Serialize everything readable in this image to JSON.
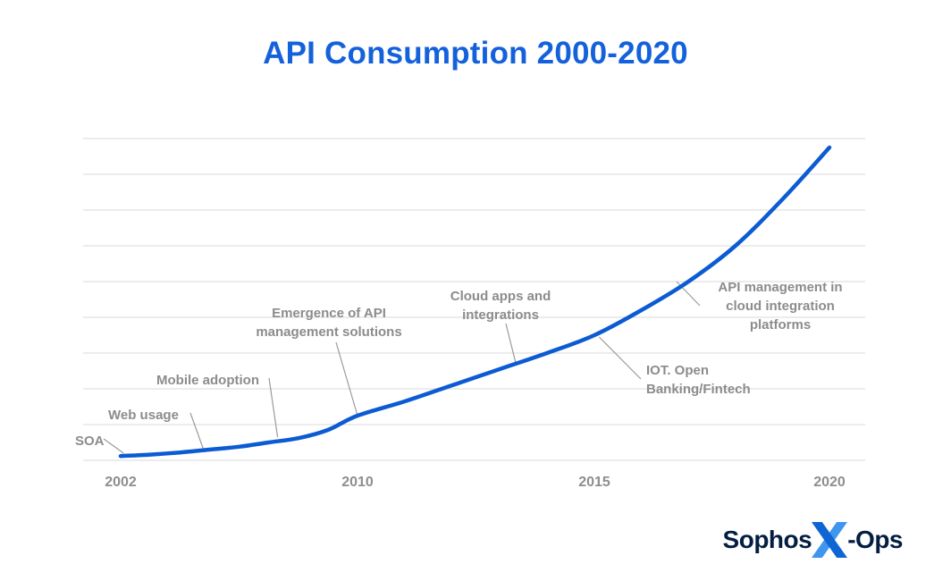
{
  "title": "API Consumption 2000-2020",
  "colors": {
    "title": "#1461dc",
    "line": "#0b5bd3",
    "grid": "#d9d9d9",
    "annotation": "#8c8c8c",
    "leader": "#9b9b9b",
    "logo_text": "#041e42",
    "logo_x_dark": "#0e66d4",
    "logo_x_light": "#3f96ee"
  },
  "logo": {
    "prefix": "Sophos",
    "suffix": "-Ops",
    "icon": "x-ops-x-icon"
  },
  "chart_data": {
    "type": "line",
    "title": "API Consumption 2000-2020",
    "xlabel": "",
    "ylabel": "",
    "legend": "none",
    "grid": "horizontal",
    "ylim": [
      0,
      9
    ],
    "gridline_step": 1,
    "x_tick_labels": [
      "2002",
      "2010",
      "2015",
      "2020"
    ],
    "x_tick_years": [
      2002,
      2010,
      2015,
      2020
    ],
    "x": [
      2002,
      2003,
      2004,
      2005,
      2006,
      2007,
      2008,
      2009,
      2010,
      2011,
      2012,
      2013,
      2014,
      2015,
      2016,
      2017,
      2018,
      2019,
      2020
    ],
    "values": [
      0.12,
      0.16,
      0.22,
      0.3,
      0.38,
      0.5,
      0.62,
      0.85,
      1.25,
      1.65,
      2.1,
      2.55,
      3.0,
      3.5,
      4.2,
      5.0,
      6.0,
      7.3,
      8.75
    ],
    "annotations": [
      {
        "id": "soa",
        "label": "SOA",
        "year": 2002.1,
        "value": 0.2
      },
      {
        "id": "web-usage",
        "label": "Web usage",
        "year": 2004.8,
        "value": 0.3
      },
      {
        "id": "mobile-adoption",
        "label": "Mobile adoption",
        "year": 2007.3,
        "value": 0.65
      },
      {
        "id": "api-management",
        "label": "Emergence of API\nmanagement solutions",
        "year": 2010.0,
        "value": 1.25
      },
      {
        "id": "cloud-apps",
        "label": "Cloud apps and\nintegrations",
        "year": 2013.35,
        "value": 2.67
      },
      {
        "id": "iot",
        "label": "IOT. Open\nBanking/Fintech",
        "year": 2015.1,
        "value": 3.45
      },
      {
        "id": "api-cloud",
        "label": "API management in\ncloud integration\nplatforms",
        "year": 2016.75,
        "value": 5.0
      }
    ]
  }
}
